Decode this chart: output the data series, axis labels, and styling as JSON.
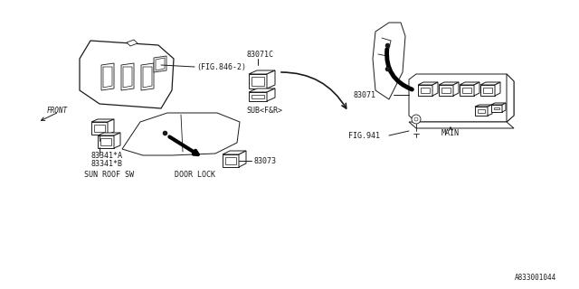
{
  "bg_color": "#ffffff",
  "line_color": "#1a1a1a",
  "text_color": "#1a1a1a",
  "fig_number": "A833001044",
  "labels": {
    "front": "FRONT",
    "sunroof_a": "83341*A",
    "sunroof_b": "83341*B",
    "sunroof_label": "SUN ROOF SW",
    "fig846": "(FIG.846-2)",
    "part_83071c": "83071C",
    "sub_label": "SUB<F&R>",
    "part_83073": "83073",
    "door_lock": "DOOR LOCK",
    "part_83071": "83071",
    "fig941": "FIG.941",
    "main_label": "MAIN"
  },
  "font_size": 6.0,
  "line_width": 0.7
}
